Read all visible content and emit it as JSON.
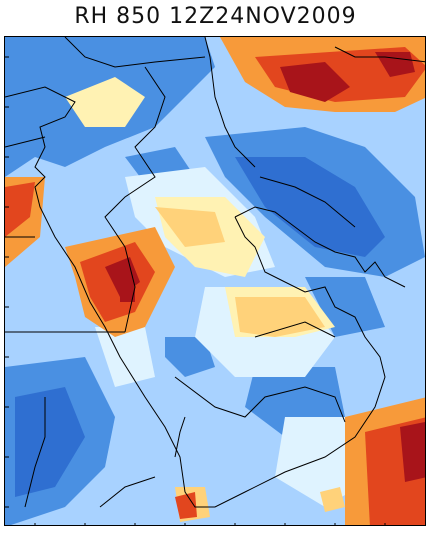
{
  "title": "RH 850 12Z24NOV2009",
  "colors": {
    "darkblue": "#2f6fd1",
    "blue": "#4a90e2",
    "lightblue": "#a8d2ff",
    "palecyan": "#dff3ff",
    "paleyellow": "#fff2b3",
    "yellow": "#ffd27a",
    "orange": "#f79a3a",
    "red": "#e2461e",
    "darkred": "#a8141a",
    "border": "#000000"
  }
}
